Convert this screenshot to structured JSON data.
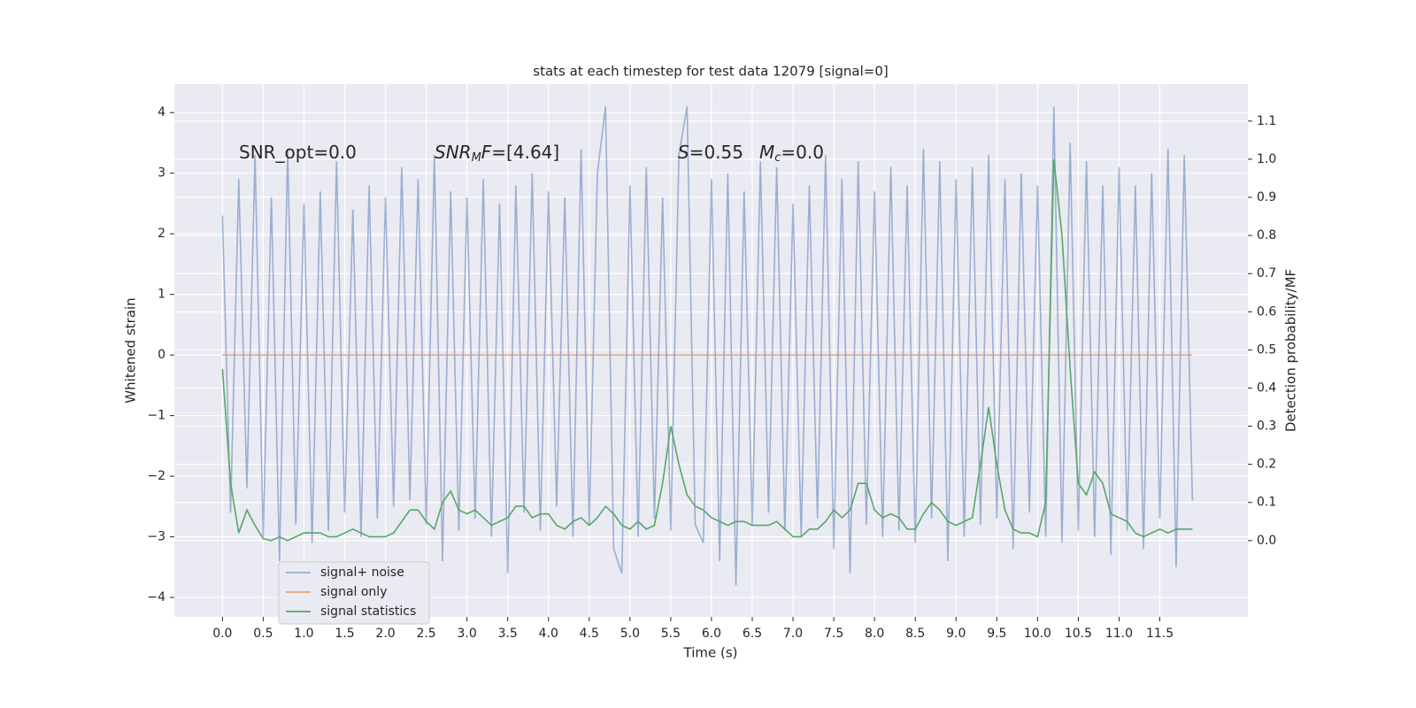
{
  "chart_data": {
    "type": "line",
    "title": "stats at each timestep for test data 12079 [signal=0]",
    "xlabel": "Time (s)",
    "ylabel": "Whitened strain",
    "y2label": "Detection probability/MF",
    "annotations": [
      [
        {
          "text": "SNR_opt=0.0",
          "style": "normal"
        }
      ],
      [
        {
          "text": "SNR",
          "style": "italic"
        },
        {
          "text": "M",
          "style": "sub"
        },
        {
          "text": "F",
          "style": "italic"
        },
        {
          "text": "=[4.64]",
          "style": "normal"
        }
      ],
      [
        {
          "text": "S",
          "style": "italic"
        },
        {
          "text": "=0.55",
          "style": "normal"
        }
      ],
      [
        {
          "text": "M",
          "style": "italic"
        },
        {
          "text": "c",
          "style": "sub"
        },
        {
          "text": "=0.0",
          "style": "normal"
        }
      ]
    ],
    "x": [
      0,
      0.1,
      0.2,
      0.3,
      0.4,
      0.5,
      0.6,
      0.7,
      0.8,
      0.9,
      1,
      1.1,
      1.2,
      1.3,
      1.4,
      1.5,
      1.6,
      1.7,
      1.8,
      1.9,
      2,
      2.1,
      2.2,
      2.3,
      2.4,
      2.5,
      2.6,
      2.7,
      2.8,
      2.9,
      3,
      3.1,
      3.2,
      3.3,
      3.4,
      3.5,
      3.6,
      3.7,
      3.8,
      3.9,
      4,
      4.1,
      4.2,
      4.3,
      4.4,
      4.5,
      4.6,
      4.7,
      4.8,
      4.9,
      5,
      5.1,
      5.2,
      5.3,
      5.4,
      5.5,
      5.6,
      5.7,
      5.8,
      5.9,
      6,
      6.1,
      6.2,
      6.3,
      6.4,
      6.5,
      6.6,
      6.7,
      6.8,
      6.9,
      7,
      7.1,
      7.2,
      7.3,
      7.4,
      7.5,
      7.6,
      7.7,
      7.8,
      7.9,
      8,
      8.1,
      8.2,
      8.3,
      8.4,
      8.5,
      8.6,
      8.7,
      8.8,
      8.9,
      9,
      9.1,
      9.2,
      9.3,
      9.4,
      9.5,
      9.6,
      9.7,
      9.8,
      9.9,
      10,
      10.1,
      10.2,
      10.3,
      10.4,
      10.5,
      10.6,
      10.7,
      10.8,
      10.9,
      11,
      11.1,
      11.2,
      11.3,
      11.4,
      11.5,
      11.6,
      11.7,
      11.8,
      11.9
    ],
    "series": [
      {
        "name": "signal+ noise",
        "color": "#4c72b0",
        "opacity": 0.5,
        "values": [
          2.3,
          -2.6,
          2.9,
          -2.2,
          3.3,
          -3.0,
          2.6,
          -3.4,
          3.4,
          -2.8,
          2.5,
          -3.1,
          2.7,
          -2.9,
          3.2,
          -2.6,
          2.4,
          -3.0,
          2.8,
          -2.7,
          2.6,
          -2.5,
          3.1,
          -2.4,
          2.9,
          -2.8,
          3.3,
          -3.4,
          2.7,
          -2.9,
          2.6,
          -2.7,
          2.9,
          -3.0,
          2.5,
          -3.6,
          2.8,
          -2.6,
          3.0,
          -2.9,
          2.7,
          -2.5,
          2.6,
          -3.0,
          3.4,
          -2.8,
          3.0,
          4.1,
          -3.2,
          -3.6,
          2.8,
          -3.0,
          3.1,
          -2.7,
          2.6,
          -2.9,
          3.3,
          4.1,
          -2.8,
          -3.1,
          2.9,
          -3.4,
          3.0,
          -3.8,
          2.7,
          -2.8,
          3.2,
          -2.6,
          3.1,
          -2.9,
          2.5,
          -3.0,
          2.8,
          -2.7,
          3.3,
          -3.2,
          2.9,
          -3.6,
          3.2,
          -2.8,
          2.7,
          -3.0,
          3.1,
          -2.9,
          2.8,
          -3.1,
          3.4,
          -2.7,
          3.2,
          -3.4,
          2.9,
          -3.0,
          3.1,
          -2.8,
          3.3,
          -2.7,
          2.9,
          -3.2,
          3.0,
          -2.6,
          2.8,
          -3.0,
          4.1,
          -3.1,
          3.5,
          -2.9,
          3.2,
          -3.0,
          2.8,
          -3.3,
          3.1,
          -2.9,
          2.8,
          -3.2,
          3.0,
          -2.7,
          3.4,
          -3.5,
          3.3,
          -2.4
        ]
      },
      {
        "name": "signal only",
        "color": "#dd8452",
        "opacity": 0.7,
        "x": [
          0,
          11.9
        ],
        "values": [
          0,
          0
        ]
      },
      {
        "name": "signal statistics",
        "color": "#55a868",
        "opacity": 1,
        "axis": "y2",
        "values": [
          0.45,
          0.15,
          0.02,
          0.08,
          0.04,
          0.005,
          0.0,
          0.01,
          0.0,
          0.01,
          0.02,
          0.02,
          0.02,
          0.01,
          0.01,
          0.02,
          0.03,
          0.02,
          0.01,
          0.01,
          0.01,
          0.02,
          0.05,
          0.08,
          0.08,
          0.05,
          0.03,
          0.1,
          0.13,
          0.08,
          0.07,
          0.08,
          0.06,
          0.04,
          0.05,
          0.06,
          0.09,
          0.09,
          0.06,
          0.07,
          0.07,
          0.04,
          0.03,
          0.05,
          0.06,
          0.04,
          0.06,
          0.09,
          0.07,
          0.04,
          0.03,
          0.05,
          0.03,
          0.04,
          0.15,
          0.3,
          0.2,
          0.12,
          0.09,
          0.08,
          0.06,
          0.05,
          0.04,
          0.05,
          0.05,
          0.04,
          0.04,
          0.04,
          0.05,
          0.03,
          0.01,
          0.01,
          0.03,
          0.03,
          0.05,
          0.08,
          0.06,
          0.08,
          0.15,
          0.15,
          0.08,
          0.06,
          0.07,
          0.06,
          0.03,
          0.03,
          0.07,
          0.1,
          0.08,
          0.05,
          0.04,
          0.05,
          0.06,
          0.2,
          0.35,
          0.2,
          0.08,
          0.03,
          0.02,
          0.02,
          0.01,
          0.1,
          1.0,
          0.8,
          0.45,
          0.15,
          0.12,
          0.18,
          0.15,
          0.07,
          0.06,
          0.05,
          0.02,
          0.01,
          0.02,
          0.03,
          0.02,
          0.03,
          0.03,
          0.03
        ]
      }
    ],
    "xlim": [
      -0.59,
      12.58
    ],
    "ylim": [
      -4.32,
      4.47
    ],
    "y2lim": [
      -0.2,
      1.197
    ],
    "xticks": [
      {
        "value": 0,
        "label": "0.0"
      },
      0.5,
      {
        "value": 1,
        "label": "1.0"
      },
      1.5,
      {
        "value": 2,
        "label": "2.0"
      },
      2.5,
      {
        "value": 3,
        "label": "3.0"
      },
      3.5,
      {
        "value": 4,
        "label": "4.0"
      },
      4.5,
      {
        "value": 5,
        "label": "5.0"
      },
      5.5,
      {
        "value": 6,
        "label": "6.0"
      },
      6.5,
      {
        "value": 7,
        "label": "7.0"
      },
      7.5,
      {
        "value": 8,
        "label": "8.0"
      },
      8.5,
      {
        "value": 9,
        "label": "9.0"
      },
      9.5,
      {
        "value": 10,
        "label": "10.0"
      },
      10.5,
      {
        "value": 11,
        "label": "11.0"
      },
      11.5
    ],
    "yticks": [
      {
        "value": -4,
        "label": "−4"
      },
      {
        "value": -3,
        "label": "−3"
      },
      {
        "value": -2,
        "label": "−2"
      },
      {
        "value": -1,
        "label": "−1"
      },
      0,
      1,
      2,
      3,
      4
    ],
    "y2ticks": [
      {
        "value": 0,
        "label": "0.0"
      },
      0.1,
      0.2,
      0.3,
      0.4,
      0.5,
      0.6,
      0.7,
      0.8,
      0.9,
      {
        "value": 1,
        "label": "1.0"
      },
      1.1
    ],
    "grid": true,
    "legend": "lower left"
  }
}
